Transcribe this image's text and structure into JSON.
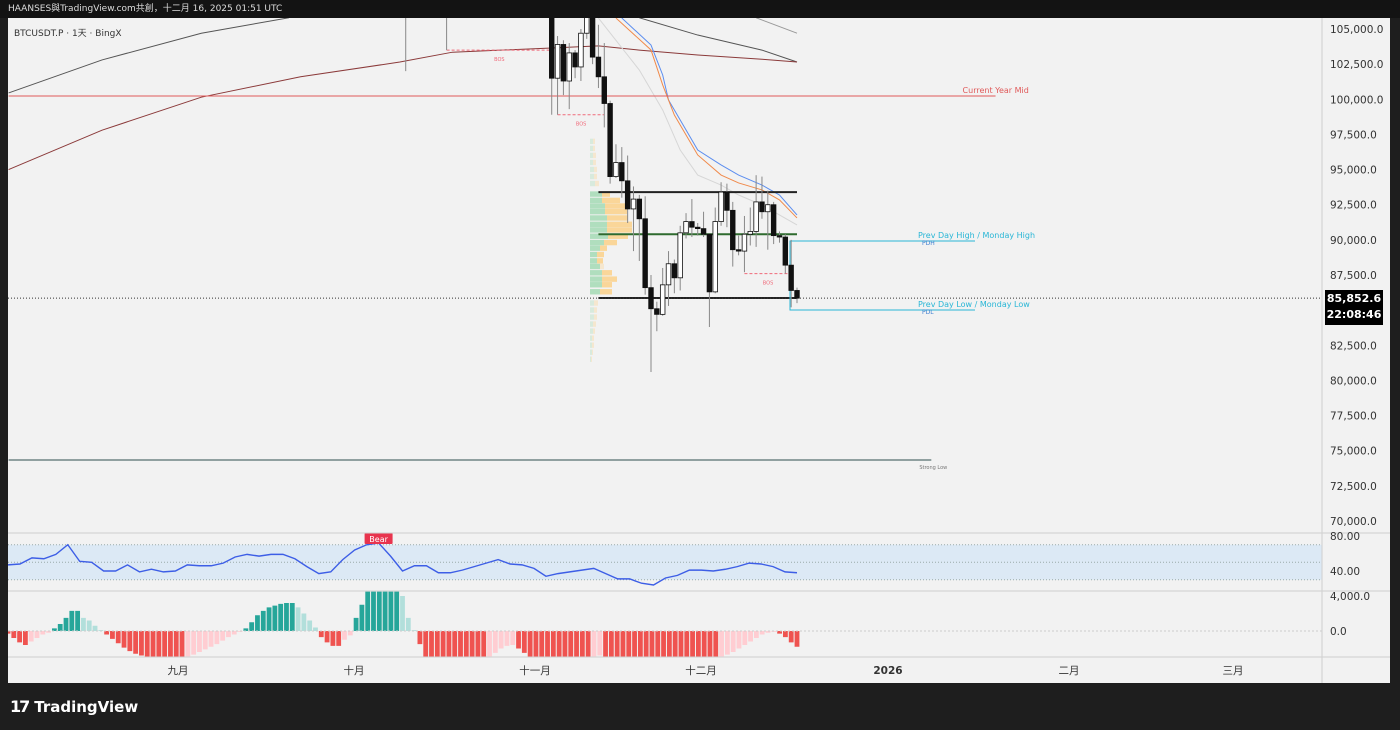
{
  "header": {
    "attribution": "HAANSES與TradingView.com共創，十二月 16, 2025 01:51 UTC"
  },
  "symbol_label": "BTCUSDT.P · 1天 · BingX",
  "footer": {
    "brand": "TradingView"
  },
  "price_tag": {
    "price": "85,852.6",
    "countdown": "22:08:46"
  },
  "colors": {
    "up": "#ffffff",
    "down": "#111111",
    "current_year_mid": "#e05a5a",
    "prev_day": "#29b6d6",
    "bos": "#f06a7a",
    "rsi": "#3d5ee6",
    "rsi_band": "#dce9f5",
    "macd_up_strong": "#26a69a",
    "macd_up_weak": "#b2dfdb",
    "macd_down_strong": "#ef5350",
    "macd_down_weak": "#ffcdd2"
  },
  "chart_data": [
    {
      "type": "candlestick",
      "title": "BTCUSDT.P · 1天 · BingX",
      "ylim": [
        69000,
        106000
      ],
      "y_ticks": [
        "105,000.0",
        "102,500.0",
        "100,000.0",
        "97,500.0",
        "95,000.0",
        "92,500.0",
        "90,000.0",
        "87,500.0",
        "82,500.0",
        "80,000.0",
        "77,500.0",
        "75,000.0",
        "72,500.0",
        "70,000.0"
      ],
      "x_ticks": [
        "九月",
        "十月",
        "十一月",
        "十二月",
        "2026",
        "二月",
        "三月"
      ],
      "candles": [
        [
          "2025-10-10",
          121700,
          122500,
          102000,
          113200
        ],
        [
          "2025-10-17",
          108200,
          109200,
          103500,
          106400
        ],
        [
          "2025-11-04",
          106500,
          106600,
          98900,
          101500
        ],
        [
          "2025-11-05",
          101500,
          104500,
          98900,
          103900
        ],
        [
          "2025-11-06",
          103900,
          104200,
          100300,
          101300
        ],
        [
          "2025-11-07",
          101300,
          104000,
          99300,
          103300
        ],
        [
          "2025-11-08",
          103300,
          103500,
          101500,
          102300
        ],
        [
          "2025-11-09",
          102300,
          105000,
          101300,
          104700
        ],
        [
          "2025-11-10",
          104700,
          106600,
          104300,
          106000
        ],
        [
          "2025-11-11",
          106000,
          107500,
          102500,
          103000
        ],
        [
          "2025-11-12",
          103000,
          105300,
          100800,
          101600
        ],
        [
          "2025-11-13",
          101600,
          104000,
          98000,
          99700
        ],
        [
          "2025-11-14",
          99700,
          99900,
          94000,
          94500
        ],
        [
          "2025-11-15",
          94500,
          96800,
          94400,
          95500
        ],
        [
          "2025-11-16",
          95500,
          96600,
          93000,
          94200
        ],
        [
          "2025-11-17",
          94200,
          96000,
          91200,
          92200
        ],
        [
          "2025-11-18",
          92200,
          93800,
          89200,
          92900
        ],
        [
          "2025-11-19",
          92900,
          93200,
          88500,
          91500
        ],
        [
          "2025-11-20",
          91500,
          93100,
          86100,
          86600
        ],
        [
          "2025-11-21",
          86600,
          87500,
          80600,
          85100
        ],
        [
          "2025-11-22",
          85100,
          85600,
          83500,
          84700
        ],
        [
          "2025-11-23",
          84700,
          88000,
          84600,
          86800
        ],
        [
          "2025-11-24",
          86800,
          89200,
          85300,
          88300
        ],
        [
          "2025-11-25",
          88300,
          88600,
          86200,
          87300
        ],
        [
          "2025-11-26",
          87300,
          91000,
          86400,
          90500
        ],
        [
          "2025-11-27",
          90500,
          91900,
          90100,
          91300
        ],
        [
          "2025-11-28",
          91300,
          92900,
          90200,
          90900
        ],
        [
          "2025-11-29",
          90900,
          91200,
          90300,
          90800
        ],
        [
          "2025-11-30",
          90800,
          92000,
          90200,
          90400
        ],
        [
          "2025-12-01",
          90400,
          90400,
          83800,
          86300
        ],
        [
          "2025-12-02",
          86300,
          92300,
          86200,
          91300
        ],
        [
          "2025-12-03",
          91300,
          94100,
          91000,
          93400
        ],
        [
          "2025-12-04",
          93400,
          94000,
          90900,
          92100
        ],
        [
          "2025-12-05",
          92100,
          92700,
          88100,
          89300
        ],
        [
          "2025-12-06",
          89300,
          90300,
          88900,
          89200
        ],
        [
          "2025-12-07",
          89200,
          91700,
          87700,
          90400
        ],
        [
          "2025-12-08",
          90400,
          92300,
          89600,
          90600
        ],
        [
          "2025-12-09",
          90600,
          94600,
          89500,
          92700
        ],
        [
          "2025-12-10",
          92700,
          94500,
          91500,
          92000
        ],
        [
          "2025-12-11",
          92000,
          93500,
          89300,
          92500
        ],
        [
          "2025-12-12",
          92500,
          92700,
          89700,
          90300
        ],
        [
          "2025-12-13",
          90300,
          90600,
          89800,
          90200
        ],
        [
          "2025-12-14",
          90200,
          90400,
          87600,
          88200
        ],
        [
          "2025-12-15",
          88200,
          90000,
          85200,
          86400
        ],
        [
          "2025-12-16",
          86400,
          86600,
          85500,
          85852.6
        ]
      ],
      "moving_averages": [
        {
          "color": "#555555",
          "points": [
            [
              "2025-08-03",
              100450
            ],
            [
              "2025-08-19",
              102800
            ],
            [
              "2025-09-05",
              104700
            ],
            [
              "2025-09-20",
              105800
            ]
          ]
        },
        {
          "color": "#555555",
          "points": [
            [
              "2025-11-19",
              105800
            ],
            [
              "2025-11-29",
              104570
            ],
            [
              "2025-12-10",
              103500
            ],
            [
              "2025-12-16",
              102650
            ]
          ]
        },
        {
          "color": "#999999",
          "points": [
            [
              "2025-12-09",
              105800
            ],
            [
              "2025-12-16",
              104700
            ]
          ]
        },
        {
          "color": "#8b3a3a",
          "points": [
            [
              "2025-08-03",
              95000
            ],
            [
              "2025-08-19",
              97800
            ],
            [
              "2025-09-05",
              100150
            ],
            [
              "2025-09-22",
              101600
            ],
            [
              "2025-10-09",
              102650
            ],
            [
              "2025-10-18",
              103350
            ],
            [
              "2025-11-04",
              103650
            ],
            [
              "2025-11-12",
              103800
            ],
            [
              "2025-11-19",
              103500
            ],
            [
              "2025-11-29",
              103150
            ],
            [
              "2025-12-10",
              102850
            ],
            [
              "2025-12-16",
              102650
            ]
          ]
        },
        {
          "color": "#5b8def",
          "points": [
            [
              "2025-11-16",
              105780
            ],
            [
              "2025-11-21",
              103860
            ],
            [
              "2025-11-23",
              101730
            ],
            [
              "2025-11-24",
              99950
            ],
            [
              "2025-11-26",
              98530
            ],
            [
              "2025-11-29",
              96390
            ],
            [
              "2025-12-03",
              95330
            ],
            [
              "2025-12-06",
              94610
            ],
            [
              "2025-12-10",
              93900
            ],
            [
              "2025-12-13",
              93190
            ],
            [
              "2025-12-16",
              91770
            ]
          ]
        },
        {
          "color": "#f08a4b",
          "points": [
            [
              "2025-11-15",
              105780
            ],
            [
              "2025-11-21",
              103510
            ],
            [
              "2025-11-23",
              101020
            ],
            [
              "2025-11-25",
              98880
            ],
            [
              "2025-11-29",
              96040
            ],
            [
              "2025-12-03",
              94610
            ],
            [
              "2025-12-06",
              94050
            ],
            [
              "2025-12-10",
              93550
            ],
            [
              "2025-12-13",
              92840
            ],
            [
              "2025-12-16",
              91560
            ]
          ]
        },
        {
          "color": "#d6d6d6",
          "points": [
            [
              "2025-11-12",
              105780
            ],
            [
              "2025-11-19",
              102080
            ],
            [
              "2025-11-23",
              99240
            ],
            [
              "2025-11-26",
              96390
            ],
            [
              "2025-11-29",
              94610
            ],
            [
              "2025-12-03",
              93900
            ],
            [
              "2025-12-06",
              93190
            ],
            [
              "2025-12-10",
              92480
            ],
            [
              "2025-12-16",
              91060
            ]
          ]
        }
      ],
      "levels": [
        {
          "label": "Current Year Mid",
          "price": 100230,
          "from": "2025-08-03",
          "to": "2026-01-19",
          "color": "#e05a5a"
        },
        {
          "label": "",
          "price": 93400,
          "from": "2025-11-12",
          "to": "2025-12-16",
          "color": "#222222"
        },
        {
          "label": "",
          "price": 90400,
          "from": "2025-11-12",
          "to": "2025-12-16",
          "color": "#2e6b2e"
        },
        {
          "label": "",
          "price": 85860,
          "from": "2025-11-12",
          "to": "2025-12-16",
          "color": "#222222"
        },
        {
          "label": "Strong Low",
          "price": 74340,
          "from": "2025-08-03",
          "to": "2026-01-08",
          "color": "#2f4f4f"
        }
      ],
      "prev_day": {
        "high": 89920,
        "low": 85010,
        "high_label": "Prev Day High / Monday High",
        "low_label": "Prev Day Low / Monday Low",
        "high_tag": "PDH",
        "low_tag": "PDL"
      },
      "bos": [
        {
          "label": "BOS",
          "price": 103500,
          "from": "2025-10-17",
          "to": "2025-11-04"
        },
        {
          "label": "BOS",
          "price": 98900,
          "from": "2025-11-05",
          "to": "2025-11-13"
        },
        {
          "label": "BOS",
          "price": 87600,
          "from": "2025-12-07",
          "to": "2025-12-15"
        }
      ],
      "volume_profile": [
        {
          "price": 97000,
          "up": 3,
          "down": 2
        },
        {
          "price": 96500,
          "up": 3,
          "down": 2
        },
        {
          "price": 96000,
          "up": 3,
          "down": 3
        },
        {
          "price": 95500,
          "up": 3,
          "down": 3
        },
        {
          "price": 95000,
          "up": 4,
          "down": 3
        },
        {
          "price": 94500,
          "up": 4,
          "down": 3
        },
        {
          "price": 94000,
          "up": 5,
          "down": 4
        },
        {
          "price": 93250,
          "up": 12,
          "down": 8
        },
        {
          "price": 92800,
          "up": 12,
          "down": 18
        },
        {
          "price": 92400,
          "up": 15,
          "down": 20
        },
        {
          "price": 92000,
          "up": 15,
          "down": 22
        },
        {
          "price": 91550,
          "up": 17,
          "down": 21
        },
        {
          "price": 91100,
          "up": 17,
          "down": 25
        },
        {
          "price": 90700,
          "up": 17,
          "down": 25
        },
        {
          "price": 90250,
          "up": 18,
          "down": 20
        },
        {
          "price": 89800,
          "up": 14,
          "down": 13
        },
        {
          "price": 89400,
          "up": 10,
          "down": 7
        },
        {
          "price": 88950,
          "up": 7,
          "down": 7
        },
        {
          "price": 88500,
          "up": 7,
          "down": 6
        },
        {
          "price": 88100,
          "up": 10,
          "down": 4
        },
        {
          "price": 87650,
          "up": 12,
          "down": 10
        },
        {
          "price": 87200,
          "up": 12,
          "down": 15
        },
        {
          "price": 86800,
          "up": 12,
          "down": 10
        },
        {
          "price": 86300,
          "up": 10,
          "down": 12
        },
        {
          "price": 85500,
          "up": 4,
          "down": 4
        },
        {
          "price": 85000,
          "up": 4,
          "down": 3
        },
        {
          "price": 84500,
          "up": 4,
          "down": 3
        },
        {
          "price": 84000,
          "up": 3,
          "down": 3
        },
        {
          "price": 83500,
          "up": 3,
          "down": 2
        },
        {
          "price": 83000,
          "up": 2,
          "down": 2
        },
        {
          "price": 82500,
          "up": 2,
          "down": 2
        },
        {
          "price": 82000,
          "up": 2,
          "down": 1
        },
        {
          "price": 81500,
          "up": 1,
          "down": 1
        }
      ]
    },
    {
      "type": "line",
      "title": "",
      "annotation": "Bear",
      "y_ticks": [
        "80.00",
        "40.00"
      ],
      "bands": [
        70,
        50,
        30
      ],
      "start": "2025-08-03",
      "end": "2025-12-16",
      "values": [
        47,
        48,
        55,
        54,
        59,
        70,
        51,
        50,
        40,
        40,
        47,
        39,
        42,
        39,
        40,
        47,
        46,
        46,
        49,
        56,
        59,
        57,
        59,
        59,
        54,
        45,
        37,
        39,
        53,
        64,
        70,
        72,
        57,
        40,
        46,
        46,
        38,
        38,
        41,
        45,
        49,
        53,
        48,
        47,
        43,
        34,
        37,
        39,
        41,
        43,
        37,
        31,
        31,
        26,
        24,
        32,
        35,
        41,
        41,
        40,
        42,
        45,
        49,
        48,
        45,
        39,
        38
      ]
    },
    {
      "type": "bar",
      "title": "",
      "y_ticks": [
        "4,000.0",
        "0.0"
      ],
      "start": "2025-08-03",
      "end": "2025-12-16",
      "values": [
        -300,
        -800,
        -1300,
        -1600,
        -1200,
        -800,
        -400,
        -200,
        300,
        800,
        1500,
        2300,
        2300,
        1500,
        1200,
        600,
        100,
        -400,
        -900,
        -1400,
        -1900,
        -2300,
        -2600,
        -2800,
        -3000,
        -3000,
        -3000,
        -3000,
        -3000,
        -3000,
        -3000,
        -2900,
        -2700,
        -2400,
        -2100,
        -1800,
        -1500,
        -1100,
        -700,
        -400,
        -100,
        300,
        1000,
        1800,
        2300,
        2700,
        2900,
        3100,
        3200,
        3200,
        2700,
        2000,
        1200,
        400,
        -700,
        -1300,
        -1700,
        -1700,
        -1000,
        -500,
        1500,
        3000,
        4500,
        4500,
        4500,
        4500,
        4500,
        4500,
        4000,
        1500,
        100,
        -1500,
        -3000,
        -3000,
        -3000,
        -3000,
        -3000,
        -3000,
        -3000,
        -3000,
        -3000,
        -3000,
        -3000,
        -2900,
        -2500,
        -2000,
        -1700,
        -1600,
        -2000,
        -2500,
        -3000,
        -3000,
        -3000,
        -3000,
        -3000,
        -3000,
        -3000,
        -3000,
        -3000,
        -3000,
        -3000,
        -2900,
        -2800,
        -3000,
        -3000,
        -3000,
        -3000,
        -3000,
        -3000,
        -3000,
        -3000,
        -3000,
        -3000,
        -3000,
        -3000,
        -3000,
        -3000,
        -3000,
        -3000,
        -3000,
        -3000,
        -3000,
        -3000,
        -2900,
        -2700,
        -2400,
        -2000,
        -1600,
        -1200,
        -800,
        -400,
        -200,
        -100,
        -300,
        -700,
        -1300,
        -1800
      ]
    }
  ]
}
